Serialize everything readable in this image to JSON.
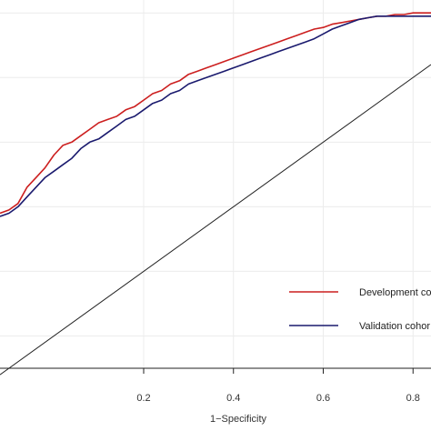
{
  "chart_data": {
    "type": "line",
    "title": "",
    "xlabel": "1−Specificity",
    "ylabel": "",
    "xlim": [
      -0.12,
      0.84
    ],
    "ylim": [
      -0.1,
      1.04
    ],
    "x_ticks": [
      0.2,
      0.4,
      0.6,
      0.8
    ],
    "x_tick_labels": [
      "0.2",
      "0.4",
      "0.6",
      "0.8"
    ],
    "y_gridlines": [
      0.0,
      0.2,
      0.4,
      0.6,
      0.8,
      1.0
    ],
    "grid": true,
    "legend_position": "bottom-right",
    "reference_line": {
      "x": [
        -0.12,
        0.84
      ],
      "y": [
        -0.12,
        0.84
      ]
    },
    "series": [
      {
        "name": "Development co",
        "color": "#cc1f1f",
        "x": [
          -0.12,
          -0.1,
          -0.08,
          -0.06,
          -0.04,
          -0.02,
          0.0,
          0.02,
          0.04,
          0.06,
          0.08,
          0.1,
          0.12,
          0.14,
          0.16,
          0.18,
          0.2,
          0.22,
          0.24,
          0.26,
          0.28,
          0.3,
          0.32,
          0.34,
          0.36,
          0.38,
          0.4,
          0.42,
          0.44,
          0.46,
          0.48,
          0.5,
          0.52,
          0.54,
          0.56,
          0.58,
          0.6,
          0.62,
          0.64,
          0.66,
          0.68,
          0.7,
          0.72,
          0.74,
          0.76,
          0.78,
          0.8,
          0.82,
          0.84
        ],
        "y": [
          0.38,
          0.39,
          0.41,
          0.46,
          0.49,
          0.52,
          0.56,
          0.59,
          0.6,
          0.62,
          0.64,
          0.66,
          0.67,
          0.68,
          0.7,
          0.71,
          0.73,
          0.75,
          0.76,
          0.78,
          0.79,
          0.81,
          0.82,
          0.83,
          0.84,
          0.85,
          0.86,
          0.87,
          0.88,
          0.89,
          0.9,
          0.91,
          0.92,
          0.93,
          0.94,
          0.95,
          0.955,
          0.965,
          0.97,
          0.975,
          0.98,
          0.985,
          0.99,
          0.99,
          0.995,
          0.995,
          1.0,
          1.0,
          1.0
        ]
      },
      {
        "name": "Validation cohor",
        "color": "#1a1a6e",
        "x": [
          -0.12,
          -0.1,
          -0.08,
          -0.06,
          -0.04,
          -0.02,
          0.0,
          0.02,
          0.04,
          0.06,
          0.08,
          0.1,
          0.12,
          0.14,
          0.16,
          0.18,
          0.2,
          0.22,
          0.24,
          0.26,
          0.28,
          0.3,
          0.32,
          0.34,
          0.36,
          0.38,
          0.4,
          0.42,
          0.44,
          0.46,
          0.48,
          0.5,
          0.52,
          0.54,
          0.56,
          0.58,
          0.6,
          0.62,
          0.64,
          0.66,
          0.68,
          0.7,
          0.72,
          0.74,
          0.76,
          0.78,
          0.8,
          0.82,
          0.84
        ],
        "y": [
          0.37,
          0.38,
          0.4,
          0.43,
          0.46,
          0.49,
          0.51,
          0.53,
          0.55,
          0.58,
          0.6,
          0.61,
          0.63,
          0.65,
          0.67,
          0.68,
          0.7,
          0.72,
          0.73,
          0.75,
          0.76,
          0.78,
          0.79,
          0.8,
          0.81,
          0.82,
          0.83,
          0.84,
          0.85,
          0.86,
          0.87,
          0.88,
          0.89,
          0.9,
          0.91,
          0.92,
          0.935,
          0.95,
          0.96,
          0.97,
          0.98,
          0.985,
          0.99,
          0.99,
          0.99,
          0.99,
          0.99,
          0.99,
          0.99
        ]
      }
    ]
  }
}
